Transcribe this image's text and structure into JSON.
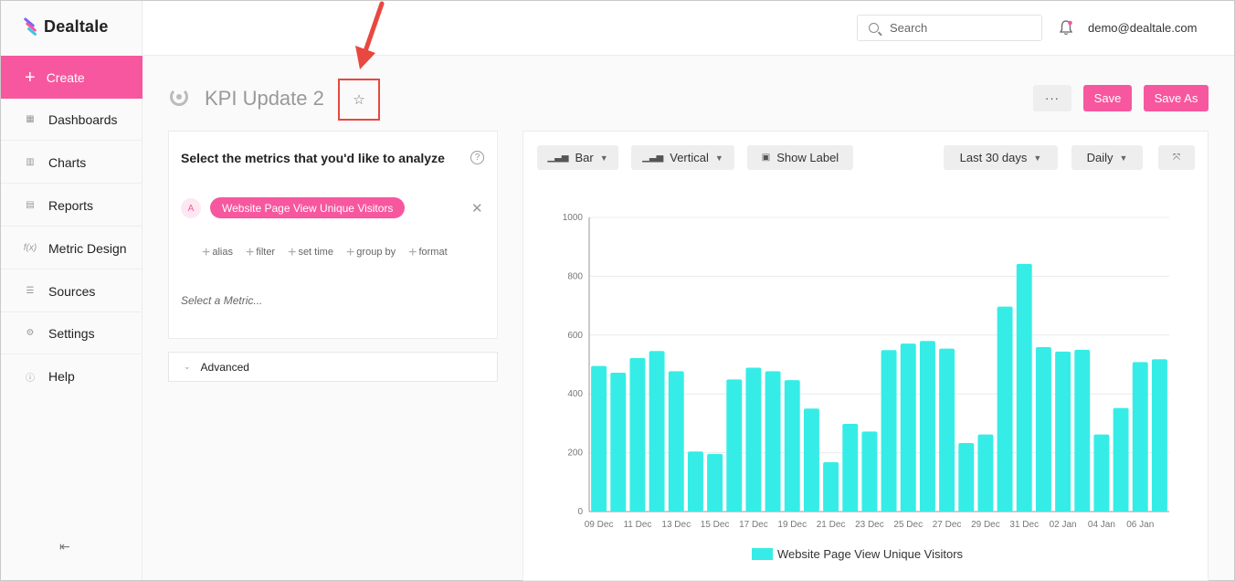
{
  "app": {
    "name": "Dealtale"
  },
  "colors": {
    "accent": "#f7579e",
    "bar": "#35ede6",
    "highlight": "#e8483f"
  },
  "sidebar": {
    "create_label": "Create",
    "items": [
      {
        "label": "Dashboards",
        "icon": "grid-icon"
      },
      {
        "label": "Charts",
        "icon": "bar-chart-icon"
      },
      {
        "label": "Reports",
        "icon": "document-icon"
      },
      {
        "label": "Metric Design",
        "icon": "function-icon"
      },
      {
        "label": "Sources",
        "icon": "database-icon"
      },
      {
        "label": "Settings",
        "icon": "gear-icon"
      },
      {
        "label": "Help",
        "icon": "question-icon"
      }
    ]
  },
  "header": {
    "search_placeholder": "Search",
    "user_email": "demo@dealtale.com"
  },
  "page": {
    "title": "KPI Update 2",
    "more_label": "···",
    "save_label": "Save",
    "save_as_label": "Save As"
  },
  "metrics": {
    "heading": "Select the metrics that you'd like to analyze",
    "help": "?",
    "letter": "A",
    "selected_metric": "Website Page View Unique Visitors",
    "remove": "✕",
    "actions": [
      "alias",
      "filter",
      "set time",
      "group by",
      "format"
    ],
    "select_placeholder": "Select a Metric...",
    "advanced_label": "Advanced"
  },
  "toolbar": {
    "chart_type": "Bar",
    "orientation": "Vertical",
    "show_label": "Show Label",
    "date_range": "Last 30 days",
    "granularity": "Daily"
  },
  "chart_data": {
    "type": "bar",
    "categories": [
      "09 Dec",
      "10 Dec",
      "11 Dec",
      "12 Dec",
      "13 Dec",
      "14 Dec",
      "15 Dec",
      "16 Dec",
      "17 Dec",
      "18 Dec",
      "19 Dec",
      "20 Dec",
      "21 Dec",
      "22 Dec",
      "23 Dec",
      "24 Dec",
      "25 Dec",
      "26 Dec",
      "27 Dec",
      "28 Dec",
      "29 Dec",
      "30 Dec",
      "31 Dec",
      "01 Jan",
      "02 Jan",
      "03 Jan",
      "04 Jan",
      "05 Jan",
      "06 Jan",
      "07 Jan"
    ],
    "tick_labels": [
      "09 Dec",
      "11 Dec",
      "13 Dec",
      "15 Dec",
      "17 Dec",
      "19 Dec",
      "21 Dec",
      "23 Dec",
      "25 Dec",
      "27 Dec",
      "29 Dec",
      "31 Dec",
      "02 Jan",
      "04 Jan",
      "06 Jan"
    ],
    "series": [
      {
        "name": "Website Page View Unique Visitors",
        "values": [
          495,
          472,
          522,
          546,
          477,
          204,
          196,
          449,
          489,
          477,
          447,
          350,
          168,
          298,
          272,
          549,
          571,
          580,
          554,
          233,
          262,
          697,
          842,
          559,
          544,
          550,
          262,
          352,
          508,
          518
        ]
      }
    ],
    "ylim": [
      0,
      1000
    ],
    "yticks": [
      0,
      200,
      400,
      600,
      800,
      1000
    ],
    "grid": true,
    "legend_position": "bottom"
  }
}
